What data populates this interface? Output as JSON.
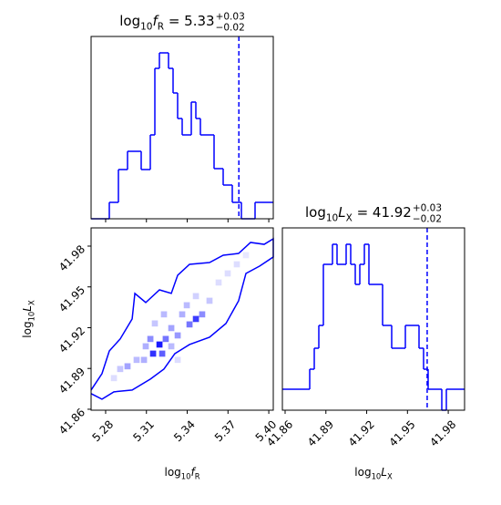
{
  "chart_data": [
    {
      "type": "histogram",
      "title": {
        "base": "log",
        "sub": "10",
        "var": "f",
        "var_sub": "R",
        "value": " = 5.33",
        "upper": "+0.03",
        "lower": "−0.02"
      },
      "bins": [
        5.2693,
        5.27265,
        5.276,
        5.27935,
        5.2827,
        5.28605,
        5.2894,
        5.29275,
        5.2961,
        5.29945,
        5.3028,
        5.30615,
        5.3095,
        5.31285,
        5.3162,
        5.31955,
        5.3229,
        5.32625,
        5.3296,
        5.33295,
        5.3363,
        5.33965,
        5.343,
        5.34635,
        5.3497,
        5.35305,
        5.3564,
        5.35975,
        5.3631,
        5.36645,
        5.3698,
        5.37315,
        5.3765,
        5.37985,
        5.3832,
        5.38655,
        5.3899,
        5.39325,
        5.3966,
        5.39995,
        5.4033
      ],
      "values": [
        0,
        0,
        0,
        0,
        18,
        18,
        54,
        54,
        74,
        74,
        74,
        54,
        54,
        92,
        165,
        182,
        182,
        165,
        138,
        110,
        92,
        92,
        128,
        110,
        92,
        92,
        92,
        55,
        55,
        37,
        37,
        18,
        18,
        0,
        0,
        0,
        18,
        18,
        18,
        18
      ],
      "truth": 5.378,
      "xlim": [
        5.2693,
        5.4033
      ],
      "ylim": [
        0,
        200
      ],
      "xticks": [
        5.28,
        5.31,
        5.34,
        5.37,
        5.4
      ],
      "color": "blue"
    },
    {
      "type": "hist2d",
      "xlabel": {
        "base": "log",
        "sub": "10",
        "var": "f",
        "var_sub": "R"
      },
      "ylabel": {
        "base": "log",
        "sub": "10",
        "var": "L",
        "var_sub": "X"
      },
      "cells": {
        "x": [
          5.3196,
          5.3149,
          5.3216,
          5.3242,
          5.3129,
          5.3464,
          5.351,
          5.3417,
          5.333,
          5.3363,
          5.3283,
          5.2961,
          5.2907,
          5.3028,
          5.3095,
          5.3564,
          5.3464,
          5.3631,
          5.3698,
          5.3832,
          5.3229,
          5.3162,
          5.3082,
          5.3283,
          5.3397,
          5.2861,
          5.333,
          5.3765
        ],
        "y": [
          41.9076,
          41.9009,
          41.9009,
          41.9117,
          41.9117,
          41.9264,
          41.9298,
          41.9224,
          41.9143,
          41.9298,
          41.9197,
          41.8916,
          41.8896,
          41.8963,
          41.9063,
          41.9398,
          41.9432,
          41.9532,
          41.9599,
          41.9733,
          41.9298,
          41.9231,
          41.8963,
          41.9063,
          41.9365,
          41.8829,
          41.8963,
          41.9666
        ],
        "density": [
          1,
          0.9,
          0.7,
          0.6,
          0.5,
          0.85,
          0.5,
          0.6,
          0.45,
          0.35,
          0.4,
          0.4,
          0.25,
          0.3,
          0.35,
          0.25,
          0.2,
          0.15,
          0.15,
          0.1,
          0.3,
          0.25,
          0.35,
          0.3,
          0.3,
          0.15,
          0.15,
          0.15
        ]
      },
      "contour": {
        "x": [
          5.2693,
          5.2773,
          5.2861,
          5.2995,
          5.3129,
          5.3229,
          5.3309,
          5.3417,
          5.3564,
          5.3685,
          5.3778,
          5.3832,
          5.3933,
          5.4033,
          5.4033,
          5.3966,
          5.3866,
          5.3778,
          5.3665,
          5.3564,
          5.3417,
          5.333,
          5.3283,
          5.3196,
          5.3095,
          5.3015,
          5.2995,
          5.2907,
          5.2827,
          5.2773,
          5.2693
        ],
        "y": [
          41.8715,
          41.8674,
          41.8728,
          41.8741,
          41.8822,
          41.8896,
          41.9009,
          41.9076,
          41.913,
          41.9231,
          41.9398,
          41.9599,
          41.9653,
          41.972,
          41.9854,
          41.9813,
          41.9827,
          41.9746,
          41.9733,
          41.9679,
          41.9666,
          41.9586,
          41.9452,
          41.9478,
          41.9385,
          41.9452,
          41.9264,
          41.9117,
          41.9029,
          41.8862,
          41.8741
        ]
      },
      "xlim": [
        5.2693,
        5.4033
      ],
      "ylim": [
        41.8593,
        41.9934
      ],
      "xticks": [
        5.28,
        5.31,
        5.34,
        5.37,
        {
          "value": 5.4,
          "label": "5.40"
        }
      ],
      "yticks": [
        41.86,
        41.89,
        41.92,
        41.95,
        41.98
      ],
      "color": "blue"
    },
    {
      "type": "histogram",
      "title": {
        "base": "log",
        "sub": "10",
        "var": "L",
        "var_sub": "X",
        "value": " = 41.92",
        "upper": "+0.03",
        "lower": "−0.02"
      },
      "xlabel": {
        "base": "log",
        "sub": "10",
        "var": "L",
        "var_sub": "X"
      },
      "bins": [
        41.858,
        41.86135,
        41.8647,
        41.86805,
        41.8714,
        41.87475,
        41.8781,
        41.88145,
        41.8848,
        41.88815,
        41.8915,
        41.89485,
        41.8982,
        41.90155,
        41.9049,
        41.90825,
        41.9116,
        41.91495,
        41.9183,
        41.92165,
        41.925,
        41.92835,
        41.9317,
        41.93505,
        41.9384,
        41.94175,
        41.9451,
        41.94845,
        41.9518,
        41.95515,
        41.9585,
        41.96185,
        41.9652,
        41.96855,
        41.9719,
        41.97525,
        41.9786,
        41.98195,
        41.9853,
        41.98865,
        41.992
      ],
      "values": [
        23,
        23,
        23,
        23,
        23,
        23,
        45,
        68,
        93,
        160,
        160,
        182,
        160,
        160,
        182,
        160,
        138,
        160,
        182,
        138,
        138,
        138,
        93,
        93,
        68,
        68,
        68,
        93,
        93,
        93,
        68,
        45,
        23,
        23,
        23,
        0,
        23,
        23,
        23,
        23
      ],
      "truth": 41.9645,
      "xlim": [
        41.858,
        41.992
      ],
      "ylim": [
        0,
        200
      ],
      "xticks": [
        41.86,
        41.89,
        41.92,
        41.95,
        41.98
      ],
      "color": "blue"
    }
  ]
}
